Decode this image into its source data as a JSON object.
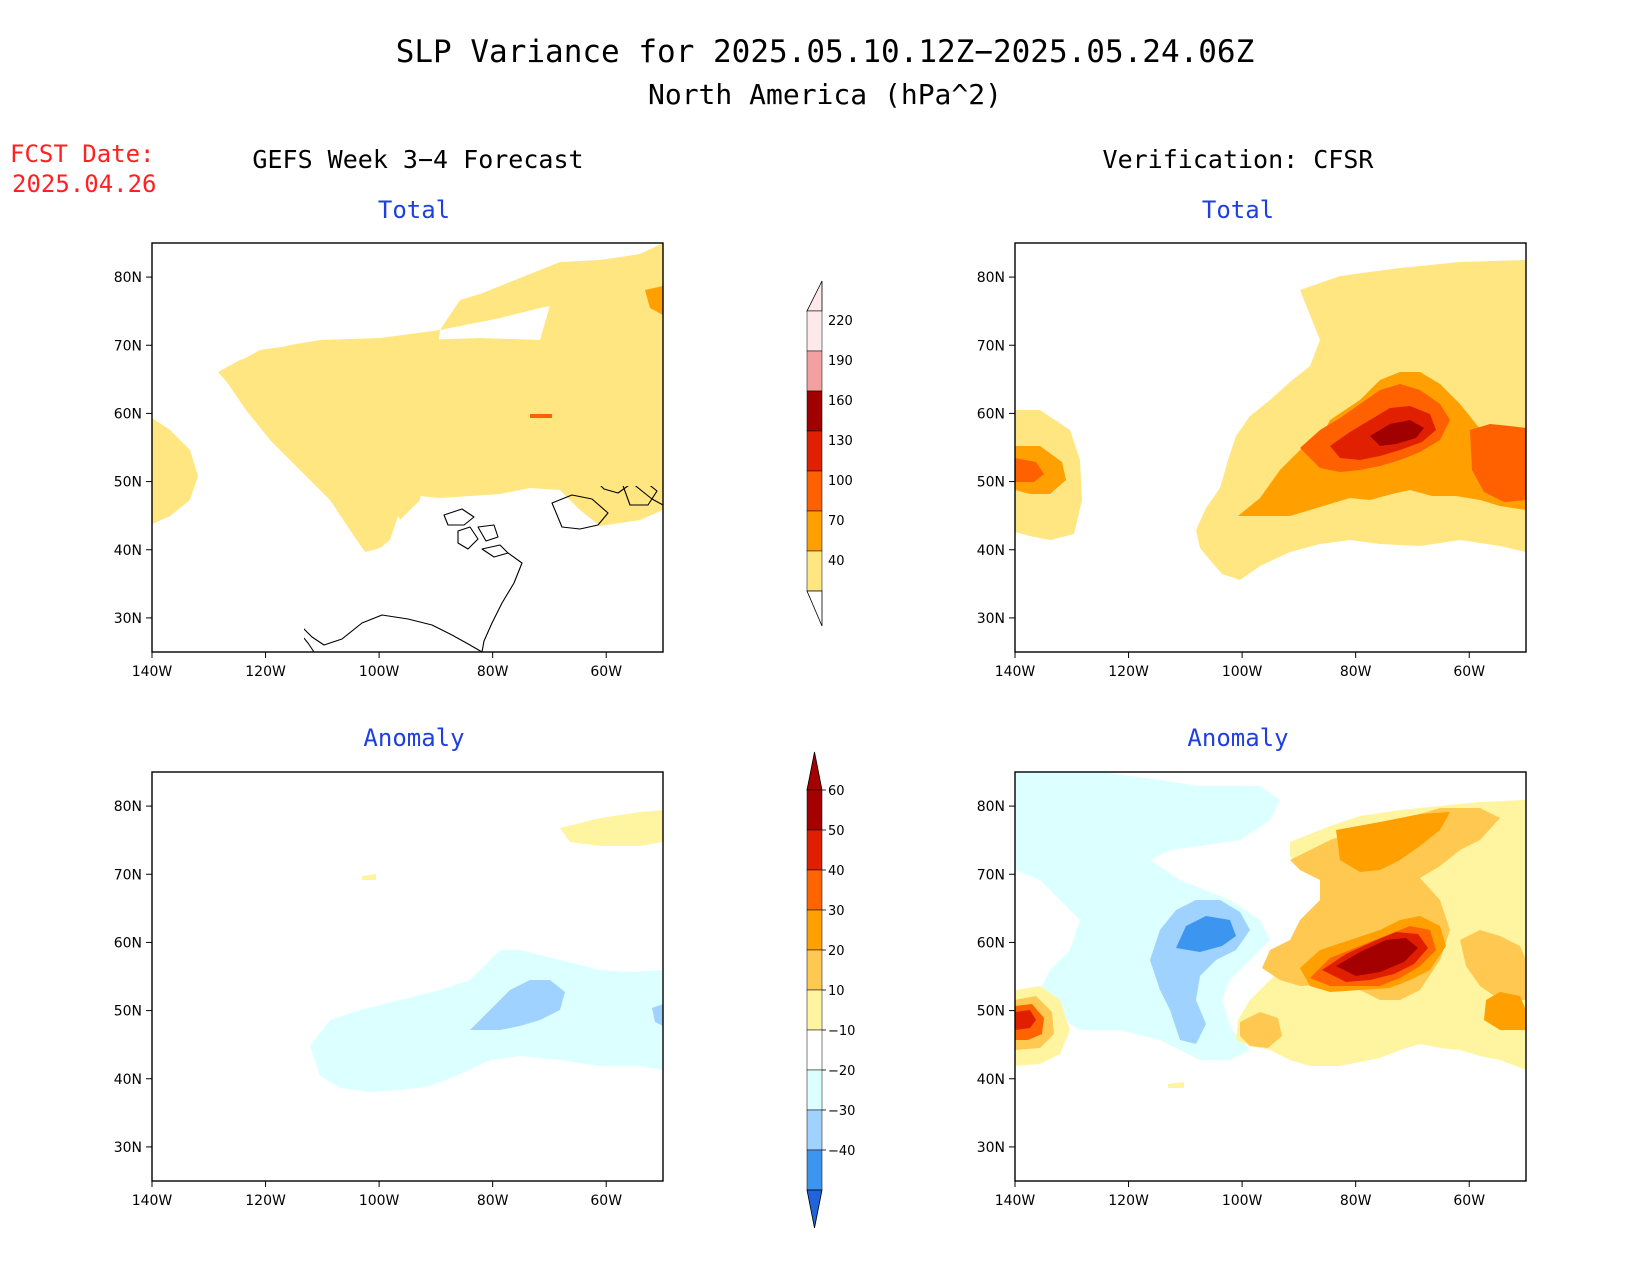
{
  "title": {
    "line1": "SLP Variance for 2025.05.10.12Z−2025.05.24.06Z",
    "line2": "North America (hPa^2)"
  },
  "fcst_date": {
    "label": "FCST Date:",
    "value": "2025.04.26"
  },
  "columns": {
    "left": "GEFS Week 3−4 Forecast",
    "right": "Verification: CFSR"
  },
  "panel_titles": {
    "total": "Total",
    "anomaly": "Anomaly"
  },
  "axes": {
    "lon_labels": [
      "140W",
      "120W",
      "100W",
      "80W",
      "60W"
    ],
    "lat_labels": [
      "80N",
      "70N",
      "60N",
      "50N",
      "40N",
      "30N"
    ]
  },
  "colors": {
    "title_blue": "#1f3fe0",
    "fcst_red": "#ff2020"
  },
  "colorbars": {
    "total": {
      "levels": [
        "220",
        "190",
        "160",
        "130",
        "100",
        "70",
        "40"
      ],
      "colors": [
        "#fde9e9",
        "#f4a0a0",
        "#a00000",
        "#e02000",
        "#ff6000",
        "#ffa000",
        "#ffe680"
      ]
    },
    "anomaly": {
      "levels": [
        "60",
        "50",
        "40",
        "30",
        "20",
        "10",
        "−10",
        "−20",
        "−30",
        "−40"
      ],
      "colors": [
        "#a50000",
        "#e01e00",
        "#ff6400",
        "#ffa000",
        "#ffc850",
        "#fff5a0",
        "#ffffff",
        "#dcffff",
        "#a0d2ff",
        "#3c96f0",
        "#1e64dc"
      ]
    }
  },
  "chart_data": [
    {
      "type": "heatmap",
      "title": "Total",
      "panel": "GEFS Week 3−4 Forecast",
      "xlim": [
        "140W",
        "50W"
      ],
      "ylim": [
        "25N",
        "85N"
      ],
      "regions": [
        {
          "description": "broad 40-70 band over northern Canada, Hudson Bay and Greenland",
          "range": "40-70"
        },
        {
          "description": "small 40-70 area off Pacific coast near 45-55N",
          "range": "40-70"
        },
        {
          "description": "small 70-100 spot near Greenland east edge",
          "range": "70-100"
        }
      ]
    },
    {
      "type": "heatmap",
      "title": "Total",
      "panel": "Verification: CFSR",
      "xlim": [
        "140W",
        "50W"
      ],
      "ylim": [
        "25N",
        "85N"
      ],
      "regions": [
        {
          "description": "large 40-70 area over eastern Canada and Greenland",
          "range": "40-70"
        },
        {
          "description": "70-130 band over Great Lakes to Labrador",
          "range": "70-130"
        },
        {
          "description": "maximum 130-190 near Hudson Bay / Quebec",
          "range": "130-190"
        },
        {
          "description": "70-100 off Pacific coast near 52N",
          "range": "70-100"
        }
      ]
    },
    {
      "type": "heatmap",
      "title": "Anomaly",
      "panel": "GEFS Week 3−4 Forecast",
      "xlim": [
        "140W",
        "50W"
      ],
      "ylim": [
        "25N",
        "85N"
      ],
      "regions": [
        {
          "description": "weak negative anomaly -10 to -20 from central US to Atlantic Canada",
          "range": "-20 to -10"
        },
        {
          "description": "-20 to -30 core over Ontario/Quebec",
          "range": "-30 to -20"
        },
        {
          "description": "weak positive 10-20 over Greenland",
          "range": "10-20"
        }
      ]
    },
    {
      "type": "heatmap",
      "title": "Anomaly",
      "panel": "Verification: CFSR",
      "xlim": [
        "140W",
        "50W"
      ],
      "ylim": [
        "25N",
        "85N"
      ],
      "regions": [
        {
          "description": "negative anomaly -10 to -40 over western/central Canada",
          "range": "-40 to -10"
        },
        {
          "description": "strong positive 40-60+ over Hudson Bay to Labrador",
          "range": "40 to >60"
        },
        {
          "description": "positive 10-40 over Greenland and Atlantic Canada",
          "range": "10-40"
        },
        {
          "description": "positive 20-60 off Pacific coast",
          "range": "20-60"
        }
      ]
    }
  ]
}
